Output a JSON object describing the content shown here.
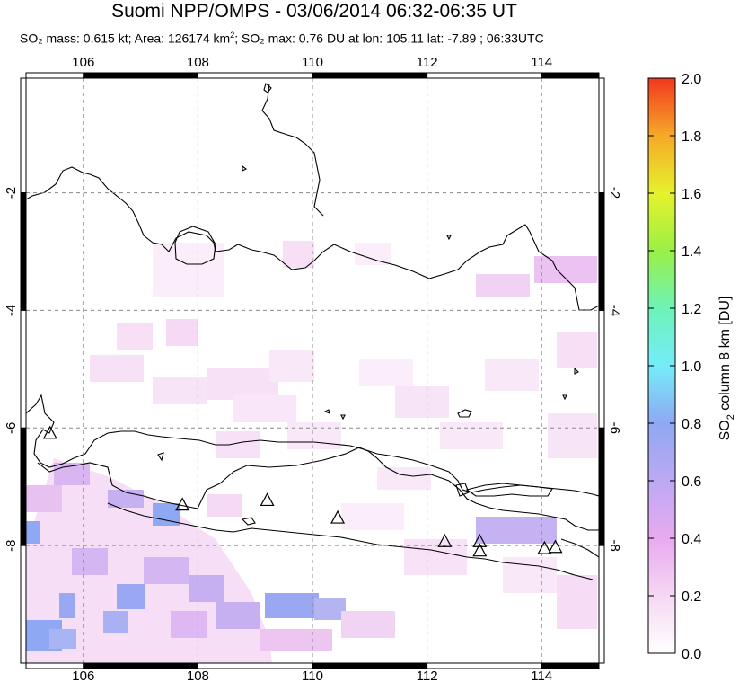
{
  "title": "Suomi NPP/OMPS - 03/06/2014 06:32-06:35 UT",
  "subtitle": {
    "so2_mass": "SO₂ mass: 0.615 kt",
    "area_prefix": "; Area: 126174 km",
    "area_sup": "2",
    "rest": "; SO₂ max: 0.76 DU at lon: 105.11 lat: -7.89 ; 06:33UTC"
  },
  "map": {
    "lon_range": [
      105,
      115
    ],
    "lat_range": [
      -10,
      -0.05
    ],
    "lon_ticks": [
      106,
      108,
      110,
      112,
      114
    ],
    "lat_ticks": [
      -2,
      -4,
      -6,
      -8
    ],
    "lon_tick_labels": [
      "106",
      "108",
      "110",
      "112",
      "114"
    ],
    "lat_tick_labels": [
      "-2",
      "-4",
      "-6",
      "-8"
    ],
    "volcano_markers": [
      {
        "lon": 105.42,
        "lat": -6.1
      },
      {
        "lon": 107.73,
        "lat": -7.32
      },
      {
        "lon": 109.21,
        "lat": -7.24
      },
      {
        "lon": 110.44,
        "lat": -7.54
      },
      {
        "lon": 112.31,
        "lat": -7.94
      },
      {
        "lon": 112.92,
        "lat": -7.94
      },
      {
        "lon": 112.92,
        "lat": -8.1
      },
      {
        "lon": 114.05,
        "lat": -8.06
      },
      {
        "lon": 114.24,
        "lat": -8.04
      }
    ]
  },
  "colorbar": {
    "label_main": "SO",
    "label_sub": "2",
    "label_rest": " column 8 km [DU]",
    "min": 0.0,
    "max": 2.0,
    "tick_values": [
      0.0,
      0.2,
      0.4,
      0.6,
      0.8,
      1.0,
      1.2,
      1.4,
      1.6,
      1.8,
      2.0
    ],
    "tick_labels": [
      "0.0",
      "0.2",
      "0.4",
      "0.6",
      "0.8",
      "1.0",
      "1.2",
      "1.4",
      "1.6",
      "1.8",
      "2.0"
    ],
    "colors": [
      "#ffffff",
      "#f6d7f4",
      "#e7aaf0",
      "#bda9f3",
      "#8fa8f3",
      "#75ecfa",
      "#6ef3b7",
      "#9af046",
      "#e6f22c",
      "#f6a928",
      "#f2371e"
    ]
  }
}
